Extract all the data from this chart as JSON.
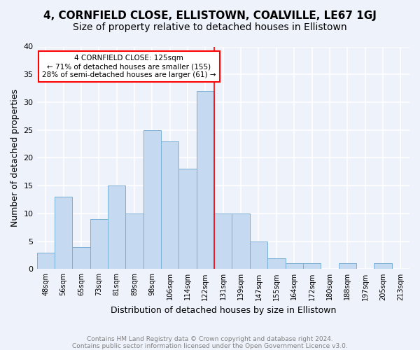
{
  "title": "4, CORNFIELD CLOSE, ELLISTOWN, COALVILLE, LE67 1GJ",
  "subtitle": "Size of property relative to detached houses in Ellistown",
  "xlabel": "Distribution of detached houses by size in Ellistown",
  "ylabel": "Number of detached properties",
  "categories": [
    "48sqm",
    "56sqm",
    "65sqm",
    "73sqm",
    "81sqm",
    "89sqm",
    "98sqm",
    "106sqm",
    "114sqm",
    "122sqm",
    "131sqm",
    "139sqm",
    "147sqm",
    "155sqm",
    "164sqm",
    "172sqm",
    "180sqm",
    "188sqm",
    "197sqm",
    "205sqm",
    "213sqm"
  ],
  "values": [
    3,
    13,
    4,
    9,
    15,
    10,
    25,
    23,
    18,
    32,
    10,
    10,
    5,
    2,
    1,
    1,
    0,
    1,
    0,
    1,
    0
  ],
  "bar_color": "#c5d9f1",
  "bar_edge_color": "#7bafd4",
  "vline_x_index": 9.5,
  "annotation_text": "4 CORNFIELD CLOSE: 125sqm\n← 71% of detached houses are smaller (155)\n28% of semi-detached houses are larger (61) →",
  "annotation_box_color": "white",
  "annotation_box_edge_color": "red",
  "vline_color": "red",
  "ylim": [
    0,
    40
  ],
  "yticks": [
    0,
    5,
    10,
    15,
    20,
    25,
    30,
    35,
    40
  ],
  "footer_line1": "Contains HM Land Registry data © Crown copyright and database right 2024.",
  "footer_line2": "Contains public sector information licensed under the Open Government Licence v3.0.",
  "background_color": "#eef2fb",
  "grid_color": "white",
  "title_fontsize": 11,
  "subtitle_fontsize": 10,
  "xlabel_fontsize": 9,
  "ylabel_fontsize": 9
}
